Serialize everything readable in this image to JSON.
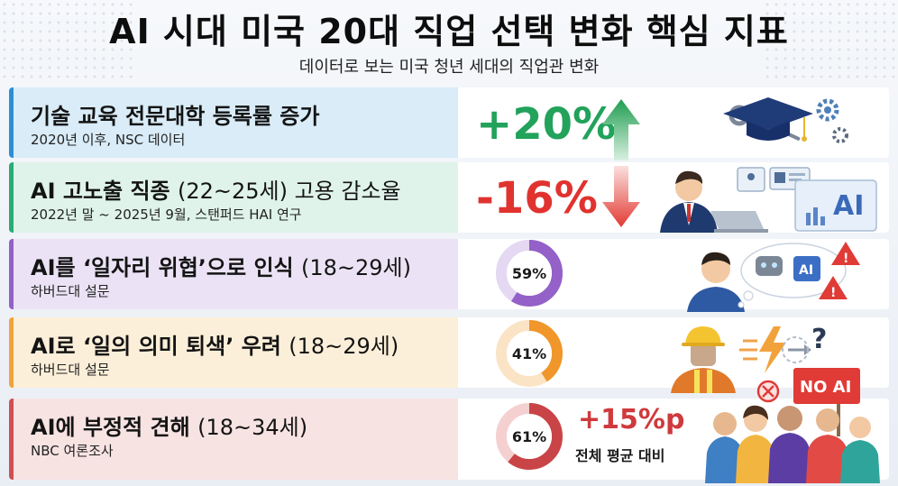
{
  "title": "AI 시대 미국 20대 직업 선택 변화 핵심 지표",
  "subtitle": "데이터로 보는 미국 청년 세대의 직업관 변화",
  "colors": {
    "blue": "#2c8fd6",
    "green": "#2bab74",
    "purple": "#9361c8",
    "orange": "#f2a23b",
    "red": "#cf4f52",
    "positive": "#22a25a",
    "negative": "#e0332f"
  },
  "rows": [
    {
      "label": "기술 교육 전문대학 등록률 증가",
      "label_suffix": "",
      "source": "2020년 이후, NSC 데이터",
      "value": "+20%",
      "direction": "up",
      "icon": "graduation-cap-wrench-gear-icon"
    },
    {
      "label": "AI 고노출 직종 ",
      "label_suffix": "(22~25세) 고용 감소율",
      "source": "2022년 말 ~ 2025년 9월, 스탠퍼드 HAI 연구",
      "value": "-16%",
      "direction": "down",
      "icon": "office-worker-ai-screen-icon"
    },
    {
      "label": "AI를 ‘일자리 위협’으로 인식 ",
      "label_suffix": "(18~29세)",
      "source": "하버드대 설문",
      "value": "59%",
      "fraction": 0.59,
      "icon": "worried-person-robot-warning-icon"
    },
    {
      "label": "AI로 ‘일의 의미 퇴색’ 우려 ",
      "label_suffix": "(18~29세)",
      "source": "하버드대 설문",
      "value": "41%",
      "fraction": 0.41,
      "icon": "hardhat-worker-lightning-question-icon"
    },
    {
      "label": "AI에 부정적 견해 ",
      "label_suffix": "(18~34세)",
      "source": "NBC 여론조사",
      "value": "61%",
      "fraction": 0.61,
      "extra_value": "+15%p",
      "extra_label": "전체 평균 대비",
      "sign_text": "NO AI",
      "icon": "protest-crowd-icon"
    }
  ]
}
